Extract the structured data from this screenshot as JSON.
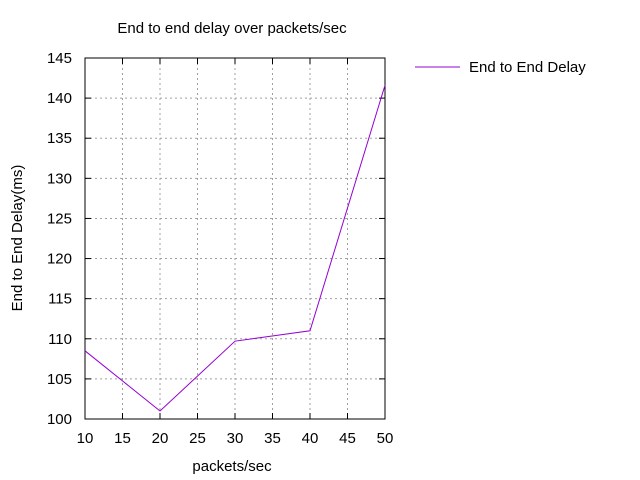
{
  "chart_data": {
    "type": "line",
    "title": "End to end delay over packets/sec",
    "xlabel": "packets/sec",
    "ylabel": "End to End Delay(ms)",
    "xlim": [
      10,
      50
    ],
    "ylim": [
      100,
      145
    ],
    "xticks": [
      10,
      15,
      20,
      25,
      30,
      35,
      40,
      45,
      50
    ],
    "yticks": [
      100,
      105,
      110,
      115,
      120,
      125,
      130,
      135,
      140,
      145
    ],
    "grid": true,
    "legend_position": "top-right, outside plot",
    "series": [
      {
        "name": "End to End Delay",
        "color": "#9400d3",
        "x": [
          10,
          20,
          30,
          40,
          50
        ],
        "y": [
          108.5,
          101.0,
          109.7,
          111.0,
          141.6
        ]
      }
    ]
  }
}
